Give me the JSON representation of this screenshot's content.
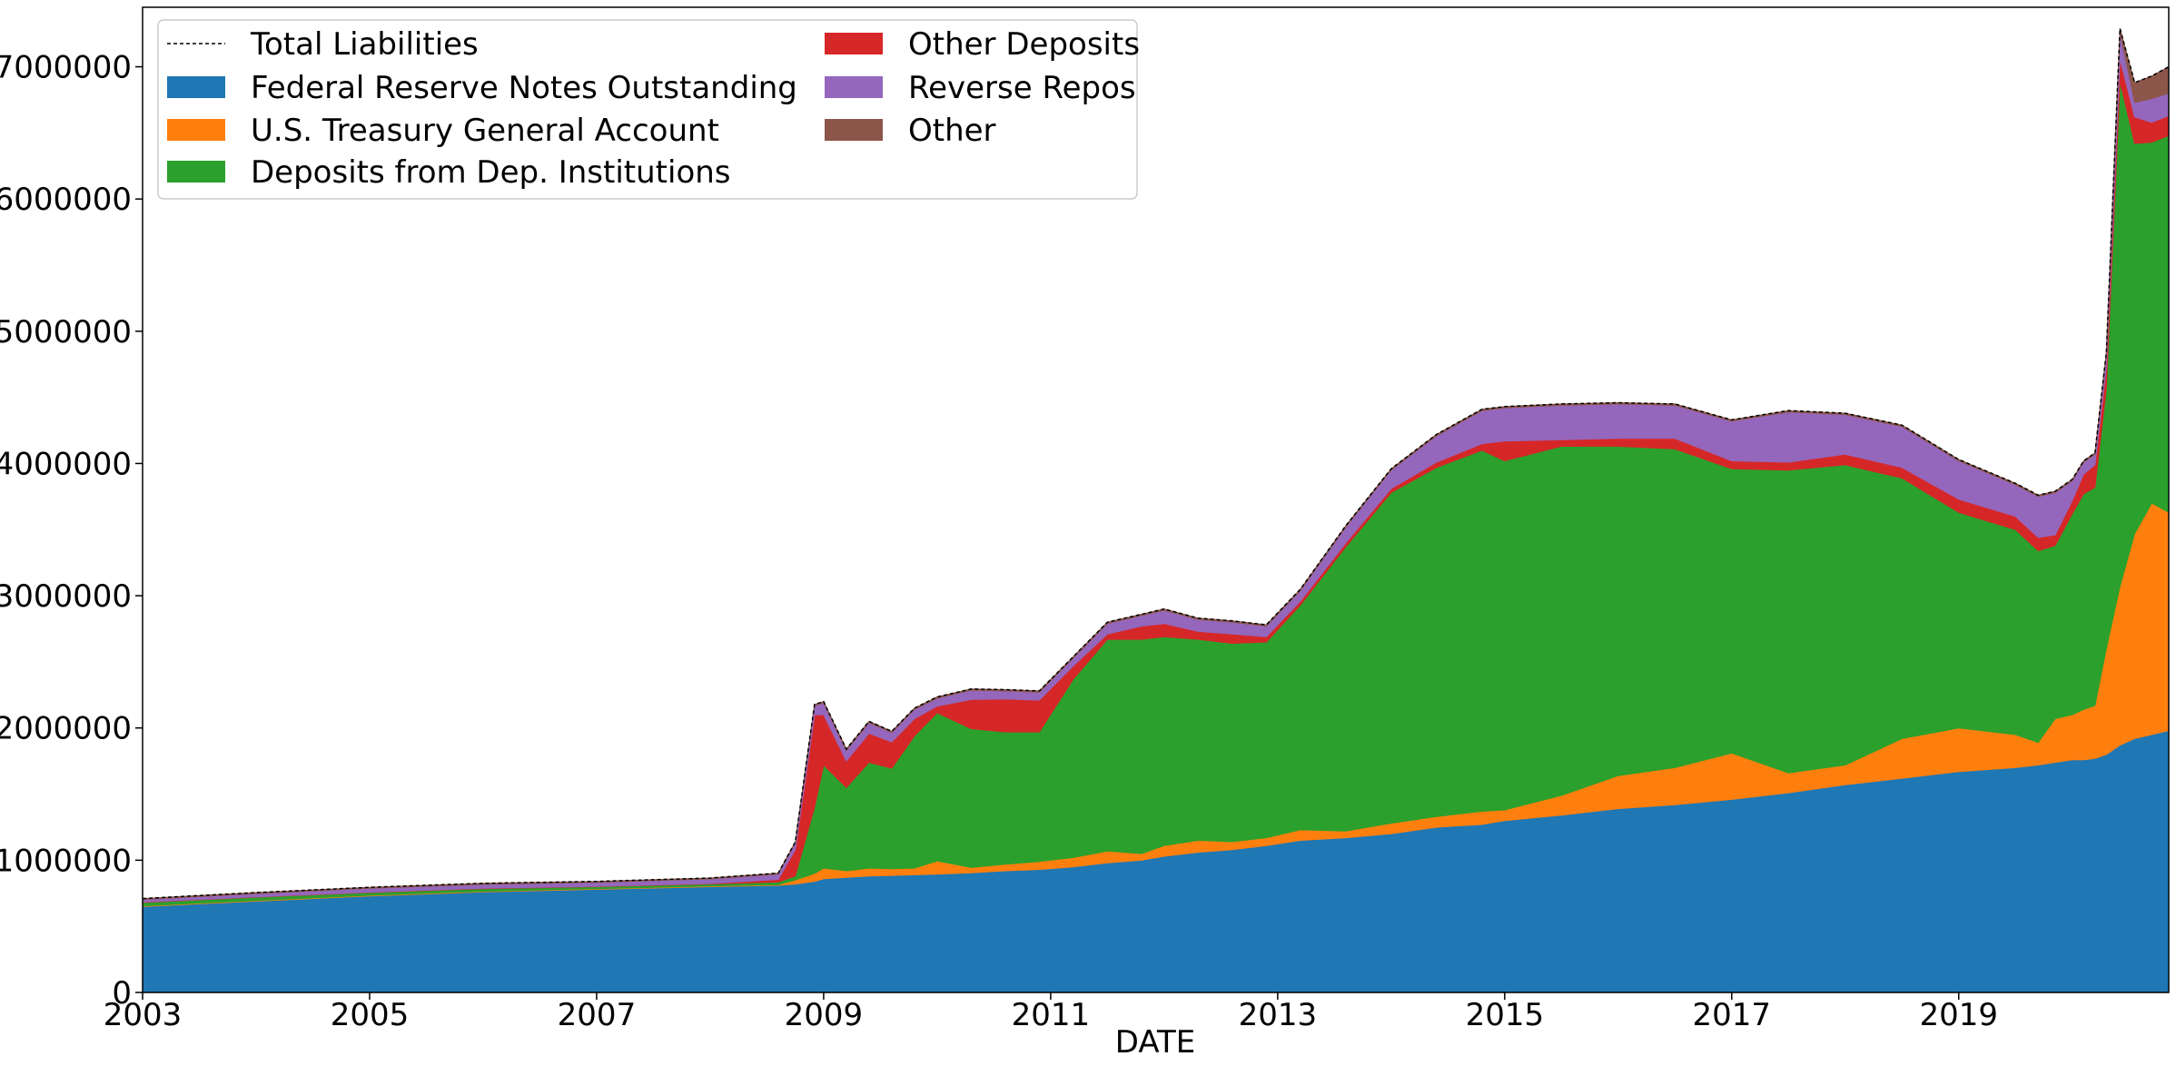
{
  "chart_data": {
    "type": "area",
    "stacked": true,
    "xlabel": "DATE",
    "ylabel": "",
    "x_range": [
      2003.0,
      2020.85
    ],
    "ylim": [
      0,
      7450000
    ],
    "x_ticks": [
      2003,
      2005,
      2007,
      2009,
      2011,
      2013,
      2015,
      2017,
      2019
    ],
    "x_tick_labels": [
      "2003",
      "2005",
      "2007",
      "2009",
      "2011",
      "2013",
      "2015",
      "2017",
      "2019"
    ],
    "y_ticks": [
      0,
      1000000,
      2000000,
      3000000,
      4000000,
      5000000,
      6000000,
      7000000
    ],
    "y_tick_labels": [
      "0",
      "1000000",
      "2000000",
      "3000000",
      "4000000",
      "5000000",
      "6000000",
      "7000000"
    ],
    "legend_position": "top-left",
    "legend": {
      "total_label": "Total Liabilities",
      "entries": [
        "Federal Reserve Notes Outstanding",
        "U.S. Treasury General Account",
        "Deposits from Dep. Institutions",
        "Other Deposits",
        "Reverse Repos",
        "Other"
      ]
    },
    "x": [
      2003.0,
      2004.0,
      2005.0,
      2006.0,
      2007.0,
      2008.0,
      2008.6,
      2008.75,
      2008.92,
      2009.0,
      2009.2,
      2009.4,
      2009.6,
      2009.8,
      2010.0,
      2010.3,
      2010.6,
      2010.9,
      2011.2,
      2011.5,
      2011.8,
      2012.0,
      2012.3,
      2012.6,
      2012.9,
      2013.2,
      2013.6,
      2014.0,
      2014.4,
      2014.8,
      2015.0,
      2015.5,
      2016.0,
      2016.5,
      2017.0,
      2017.5,
      2018.0,
      2018.5,
      2019.0,
      2019.5,
      2019.7,
      2019.85,
      2020.0,
      2020.1,
      2020.2,
      2020.3,
      2020.42,
      2020.55,
      2020.7,
      2020.85
    ],
    "series": [
      {
        "name": "Federal Reserve Notes Outstanding",
        "color": "#1f77b4",
        "values": [
          650000,
          690000,
          730000,
          760000,
          780000,
          800000,
          810000,
          820000,
          840000,
          860000,
          870000,
          880000,
          885000,
          890000,
          895000,
          905000,
          920000,
          930000,
          950000,
          980000,
          1000000,
          1030000,
          1060000,
          1080000,
          1110000,
          1150000,
          1170000,
          1200000,
          1250000,
          1270000,
          1300000,
          1340000,
          1390000,
          1420000,
          1460000,
          1510000,
          1570000,
          1620000,
          1670000,
          1700000,
          1720000,
          1740000,
          1760000,
          1760000,
          1770000,
          1800000,
          1870000,
          1920000,
          1950000,
          1980000
        ]
      },
      {
        "name": "U.S. Treasury General Account",
        "color": "#ff7f0e",
        "values": [
          5000,
          5000,
          5000,
          5000,
          5000,
          5000,
          5000,
          30000,
          60000,
          80000,
          50000,
          60000,
          50000,
          50000,
          100000,
          40000,
          50000,
          60000,
          70000,
          90000,
          50000,
          80000,
          90000,
          60000,
          60000,
          80000,
          50000,
          80000,
          80000,
          100000,
          80000,
          150000,
          250000,
          280000,
          350000,
          150000,
          150000,
          300000,
          330000,
          250000,
          170000,
          330000,
          340000,
          380000,
          400000,
          800000,
          1200000,
          1550000,
          1750000,
          1650000
        ]
      },
      {
        "name": "Deposits from Dep. Institutions",
        "color": "#2ca02c",
        "values": [
          25000,
          25000,
          20000,
          20000,
          15000,
          15000,
          20000,
          30000,
          500000,
          780000,
          630000,
          800000,
          760000,
          1000000,
          1120000,
          1050000,
          1000000,
          980000,
          1350000,
          1600000,
          1620000,
          1580000,
          1520000,
          1500000,
          1480000,
          1700000,
          2150000,
          2500000,
          2640000,
          2730000,
          2640000,
          2640000,
          2490000,
          2410000,
          2150000,
          2290000,
          2270000,
          1970000,
          1630000,
          1550000,
          1450000,
          1310000,
          1520000,
          1630000,
          1650000,
          1970000,
          3820000,
          2950000,
          2730000,
          2850000
        ]
      },
      {
        "name": "Other Deposits",
        "color": "#d62728",
        "values": [
          3000,
          3000,
          3000,
          3000,
          3000,
          3000,
          20000,
          200000,
          700000,
          380000,
          200000,
          220000,
          200000,
          130000,
          50000,
          220000,
          250000,
          240000,
          100000,
          40000,
          100000,
          100000,
          60000,
          70000,
          40000,
          30000,
          30000,
          30000,
          40000,
          50000,
          150000,
          50000,
          60000,
          80000,
          60000,
          60000,
          80000,
          80000,
          100000,
          100000,
          100000,
          80000,
          100000,
          150000,
          170000,
          160000,
          170000,
          200000,
          150000,
          150000
        ]
      },
      {
        "name": "Reverse Repos",
        "color": "#9467bd",
        "values": [
          20000,
          25000,
          30000,
          30000,
          30000,
          35000,
          40000,
          50000,
          70000,
          90000,
          80000,
          80000,
          70000,
          70000,
          60000,
          70000,
          60000,
          60000,
          60000,
          80000,
          80000,
          100000,
          90000,
          90000,
          80000,
          80000,
          120000,
          140000,
          200000,
          250000,
          250000,
          260000,
          260000,
          250000,
          300000,
          380000,
          300000,
          310000,
          290000,
          240000,
          310000,
          320000,
          150000,
          90000,
          80000,
          100000,
          200000,
          110000,
          180000,
          170000
        ]
      },
      {
        "name": "Other",
        "color": "#8c564b",
        "values": [
          7000,
          7000,
          7000,
          7000,
          7000,
          7000,
          7000,
          8000,
          8000,
          10000,
          10000,
          10000,
          10000,
          10000,
          10000,
          10000,
          10000,
          10000,
          10000,
          10000,
          10000,
          10000,
          10000,
          10000,
          10000,
          10000,
          10000,
          10000,
          10000,
          10000,
          10000,
          10000,
          10000,
          10000,
          10000,
          10000,
          10000,
          10000,
          10000,
          10000,
          10000,
          10000,
          10000,
          10000,
          10000,
          10000,
          30000,
          150000,
          170000,
          200000
        ]
      }
    ]
  }
}
